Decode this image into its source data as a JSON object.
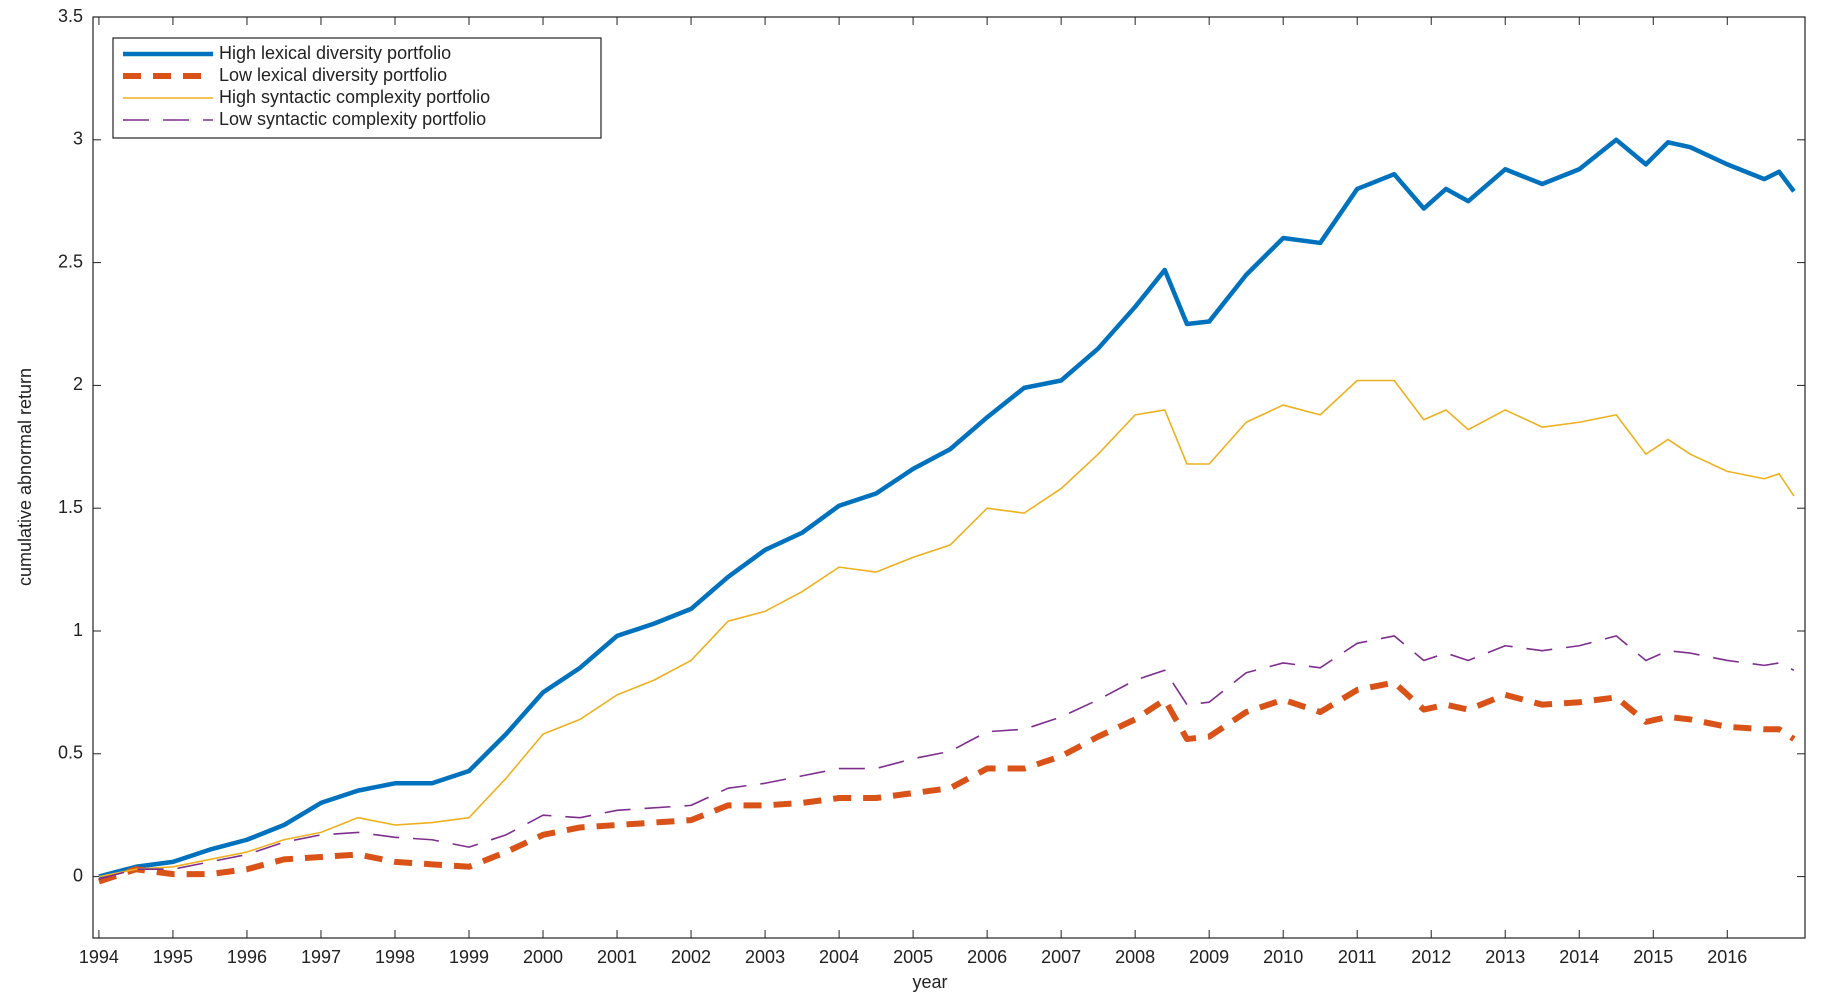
{
  "chart_data": {
    "type": "line",
    "xlabel": "year",
    "ylabel": "cumulative abnormal return",
    "x": [
      1994,
      1994.5,
      1995,
      1995.5,
      1996,
      1996.5,
      1997,
      1997.5,
      1998,
      1998.5,
      1999,
      1999.5,
      2000,
      2000.5,
      2001,
      2001.5,
      2002,
      2002.5,
      2003,
      2003.5,
      2004,
      2004.5,
      2005,
      2005.5,
      2006,
      2006.5,
      2007,
      2007.5,
      2008,
      2008.4,
      2008.7,
      2009,
      2009.5,
      2010,
      2010.5,
      2011,
      2011.5,
      2011.9,
      2012.2,
      2012.5,
      2013,
      2013.5,
      2014,
      2014.5,
      2014.9,
      2015.2,
      2015.5,
      2016,
      2016.5,
      2016.7,
      2016.9
    ],
    "series": [
      {
        "name": "High lexical diversity portfolio",
        "color": "#0072bd",
        "linestyle": "solid",
        "values": [
          0,
          0.04,
          0.06,
          0.11,
          0.15,
          0.21,
          0.3,
          0.35,
          0.38,
          0.38,
          0.43,
          0.58,
          0.75,
          0.85,
          0.98,
          1.03,
          1.09,
          1.22,
          1.33,
          1.4,
          1.51,
          1.56,
          1.66,
          1.74,
          1.87,
          1.99,
          2.02,
          2.15,
          2.32,
          2.47,
          2.25,
          2.26,
          2.45,
          2.6,
          2.58,
          2.8,
          2.86,
          2.72,
          2.8,
          2.75,
          2.88,
          2.82,
          2.88,
          3.0,
          2.9,
          2.99,
          2.97,
          2.9,
          2.84,
          2.87,
          2.79
        ]
      },
      {
        "name": "Low lexical diversity portfolio",
        "color": "#d95319",
        "linestyle": "dashed",
        "values": [
          -0.02,
          0.03,
          0.01,
          0.01,
          0.03,
          0.07,
          0.08,
          0.09,
          0.06,
          0.05,
          0.04,
          0.1,
          0.17,
          0.2,
          0.21,
          0.22,
          0.23,
          0.29,
          0.29,
          0.3,
          0.32,
          0.32,
          0.34,
          0.36,
          0.44,
          0.44,
          0.49,
          0.57,
          0.64,
          0.72,
          0.56,
          0.57,
          0.67,
          0.72,
          0.67,
          0.76,
          0.79,
          0.68,
          0.7,
          0.68,
          0.74,
          0.7,
          0.71,
          0.73,
          0.63,
          0.65,
          0.64,
          0.61,
          0.6,
          0.6,
          0.56
        ]
      },
      {
        "name": "High syntactic complexity portfolio",
        "color": "#edb120",
        "linestyle": "solid",
        "values": [
          0,
          0.03,
          0.04,
          0.07,
          0.1,
          0.15,
          0.18,
          0.24,
          0.21,
          0.22,
          0.24,
          0.4,
          0.58,
          0.64,
          0.74,
          0.8,
          0.88,
          1.04,
          1.08,
          1.16,
          1.26,
          1.24,
          1.3,
          1.35,
          1.5,
          1.48,
          1.58,
          1.72,
          1.88,
          1.9,
          1.68,
          1.68,
          1.85,
          1.92,
          1.88,
          2.02,
          2.02,
          1.86,
          1.9,
          1.82,
          1.9,
          1.83,
          1.85,
          1.88,
          1.72,
          1.78,
          1.72,
          1.65,
          1.62,
          1.64,
          1.55
        ]
      },
      {
        "name": "Low syntactic complexity portfolio",
        "color": "#7e2f8e",
        "linestyle": "dashed",
        "values": [
          -0.01,
          0.03,
          0.03,
          0.06,
          0.09,
          0.14,
          0.17,
          0.18,
          0.16,
          0.15,
          0.12,
          0.17,
          0.25,
          0.24,
          0.27,
          0.28,
          0.29,
          0.36,
          0.38,
          0.41,
          0.44,
          0.44,
          0.48,
          0.51,
          0.59,
          0.6,
          0.65,
          0.72,
          0.8,
          0.84,
          0.7,
          0.71,
          0.83,
          0.87,
          0.85,
          0.95,
          0.98,
          0.88,
          0.91,
          0.88,
          0.94,
          0.92,
          0.94,
          0.98,
          0.88,
          0.92,
          0.91,
          0.88,
          0.86,
          0.87,
          0.84
        ]
      }
    ],
    "xlim": [
      1993.92,
      2017.05
    ],
    "xticks": [
      1994,
      1995,
      1996,
      1997,
      1998,
      1999,
      2000,
      2001,
      2002,
      2003,
      2004,
      2005,
      2006,
      2007,
      2008,
      2009,
      2010,
      2011,
      2012,
      2013,
      2014,
      2015,
      2016
    ],
    "ylim": [
      -0.25,
      3.5
    ],
    "yticks": [
      0,
      0.5,
      1,
      1.5,
      2,
      2.5,
      3,
      3.5
    ],
    "grid": false,
    "legend": "upper left"
  }
}
